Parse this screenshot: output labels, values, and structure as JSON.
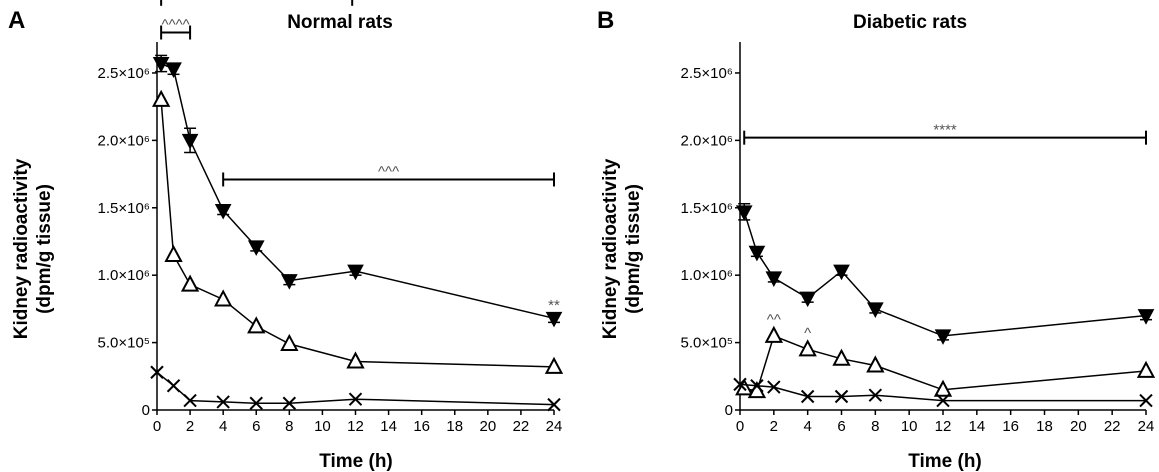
{
  "chart_data": [
    {
      "type": "line",
      "panel": "A",
      "title": "Normal rats",
      "xlabel": "Time (h)",
      "ylabel": [
        "Kidney radioactivity",
        "(dpm/g tissue)"
      ],
      "xlim": [
        0,
        24
      ],
      "ylim": [
        0,
        2700000
      ],
      "xticks": [
        "0",
        "2",
        "4",
        "6",
        "8",
        "10",
        "12",
        "14",
        "16",
        "18",
        "20",
        "22",
        "24"
      ],
      "yticks": [
        {
          "value": 0,
          "label": "0"
        },
        {
          "value": 500000,
          "label": "5.0×10⁵"
        },
        {
          "value": 1000000,
          "label": "1.0×10⁶"
        },
        {
          "value": 1500000,
          "label": "1.5×10⁶"
        },
        {
          "value": 2000000,
          "label": "2.0×10⁶"
        },
        {
          "value": 2500000,
          "label": "2.5×10⁶"
        }
      ],
      "grid": false,
      "series": [
        {
          "marker": "filled-triangle-down",
          "x": [
            0.25,
            1,
            2,
            4,
            6,
            8,
            12,
            24
          ],
          "y": [
            2570000,
            2530000,
            2000000,
            1480000,
            1210000,
            960000,
            1030000,
            680000
          ],
          "err": [
            60000,
            40000,
            90000,
            30000,
            30000,
            30000,
            30000,
            30000
          ]
        },
        {
          "marker": "open-triangle-up",
          "x": [
            0.25,
            1,
            2,
            4,
            6,
            8,
            12,
            24
          ],
          "y": [
            2300000,
            1150000,
            930000,
            820000,
            620000,
            490000,
            360000,
            320000
          ],
          "err": [
            0,
            0,
            0,
            0,
            0,
            0,
            0,
            0
          ]
        },
        {
          "marker": "x",
          "x": [
            0,
            1,
            2,
            4,
            6,
            8,
            12,
            24
          ],
          "y": [
            280000,
            180000,
            70000,
            60000,
            50000,
            50000,
            80000,
            40000
          ],
          "err": [
            0,
            0,
            0,
            0,
            0,
            0,
            0,
            0
          ]
        }
      ],
      "annotations": [
        {
          "text": "****",
          "x1": 0.25,
          "x2": 11.8,
          "y": 3050000
        },
        {
          "text": "^^^^",
          "x1": 0.25,
          "x2": 2,
          "y": 2800000
        },
        {
          "text": "^^^",
          "x1": 4,
          "x2": 24,
          "y": 1710000
        },
        {
          "text": "**",
          "x": 24,
          "y": 780000
        }
      ]
    },
    {
      "type": "line",
      "panel": "B",
      "title": "Diabetic rats",
      "xlabel": "Time (h)",
      "ylabel": [
        "Kidney radioactivity",
        "(dpm/g tissue)"
      ],
      "xlim": [
        0,
        24
      ],
      "ylim": [
        0,
        2700000
      ],
      "xticks": [
        "0",
        "2",
        "4",
        "6",
        "8",
        "10",
        "12",
        "14",
        "16",
        "18",
        "20",
        "22",
        "24"
      ],
      "yticks": [
        {
          "value": 0,
          "label": "0"
        },
        {
          "value": 500000,
          "label": "5.0×10⁵"
        },
        {
          "value": 1000000,
          "label": "1.0×10⁶"
        },
        {
          "value": 1500000,
          "label": "1.5×10⁶"
        },
        {
          "value": 2000000,
          "label": "2.0×10⁶"
        },
        {
          "value": 2500000,
          "label": "2.5×10⁶"
        }
      ],
      "grid": false,
      "series": [
        {
          "marker": "filled-triangle-down",
          "x": [
            0.25,
            1,
            2,
            4,
            6,
            8,
            12,
            24
          ],
          "y": [
            1470000,
            1170000,
            980000,
            830000,
            1030000,
            750000,
            550000,
            700000
          ],
          "err": [
            60000,
            30000,
            30000,
            30000,
            30000,
            30000,
            30000,
            30000
          ]
        },
        {
          "marker": "open-triangle-up",
          "x": [
            0.25,
            1,
            2,
            4,
            6,
            8,
            12,
            24
          ],
          "y": [
            160000,
            140000,
            550000,
            450000,
            380000,
            330000,
            150000,
            290000
          ],
          "err": [
            0,
            0,
            0,
            0,
            0,
            0,
            0,
            0
          ]
        },
        {
          "marker": "x",
          "x": [
            0,
            1,
            2,
            4,
            6,
            8,
            12,
            24
          ],
          "y": [
            190000,
            180000,
            170000,
            100000,
            100000,
            110000,
            70000,
            70000
          ],
          "err": [
            0,
            0,
            0,
            0,
            0,
            0,
            0,
            0
          ]
        }
      ],
      "annotations": [
        {
          "text": "****",
          "x1": 0.25,
          "x2": 24,
          "y": 2020000
        },
        {
          "text": "^^",
          "x": 2,
          "y": 670000
        },
        {
          "text": "^",
          "x": 4,
          "y": 570000
        }
      ]
    }
  ]
}
